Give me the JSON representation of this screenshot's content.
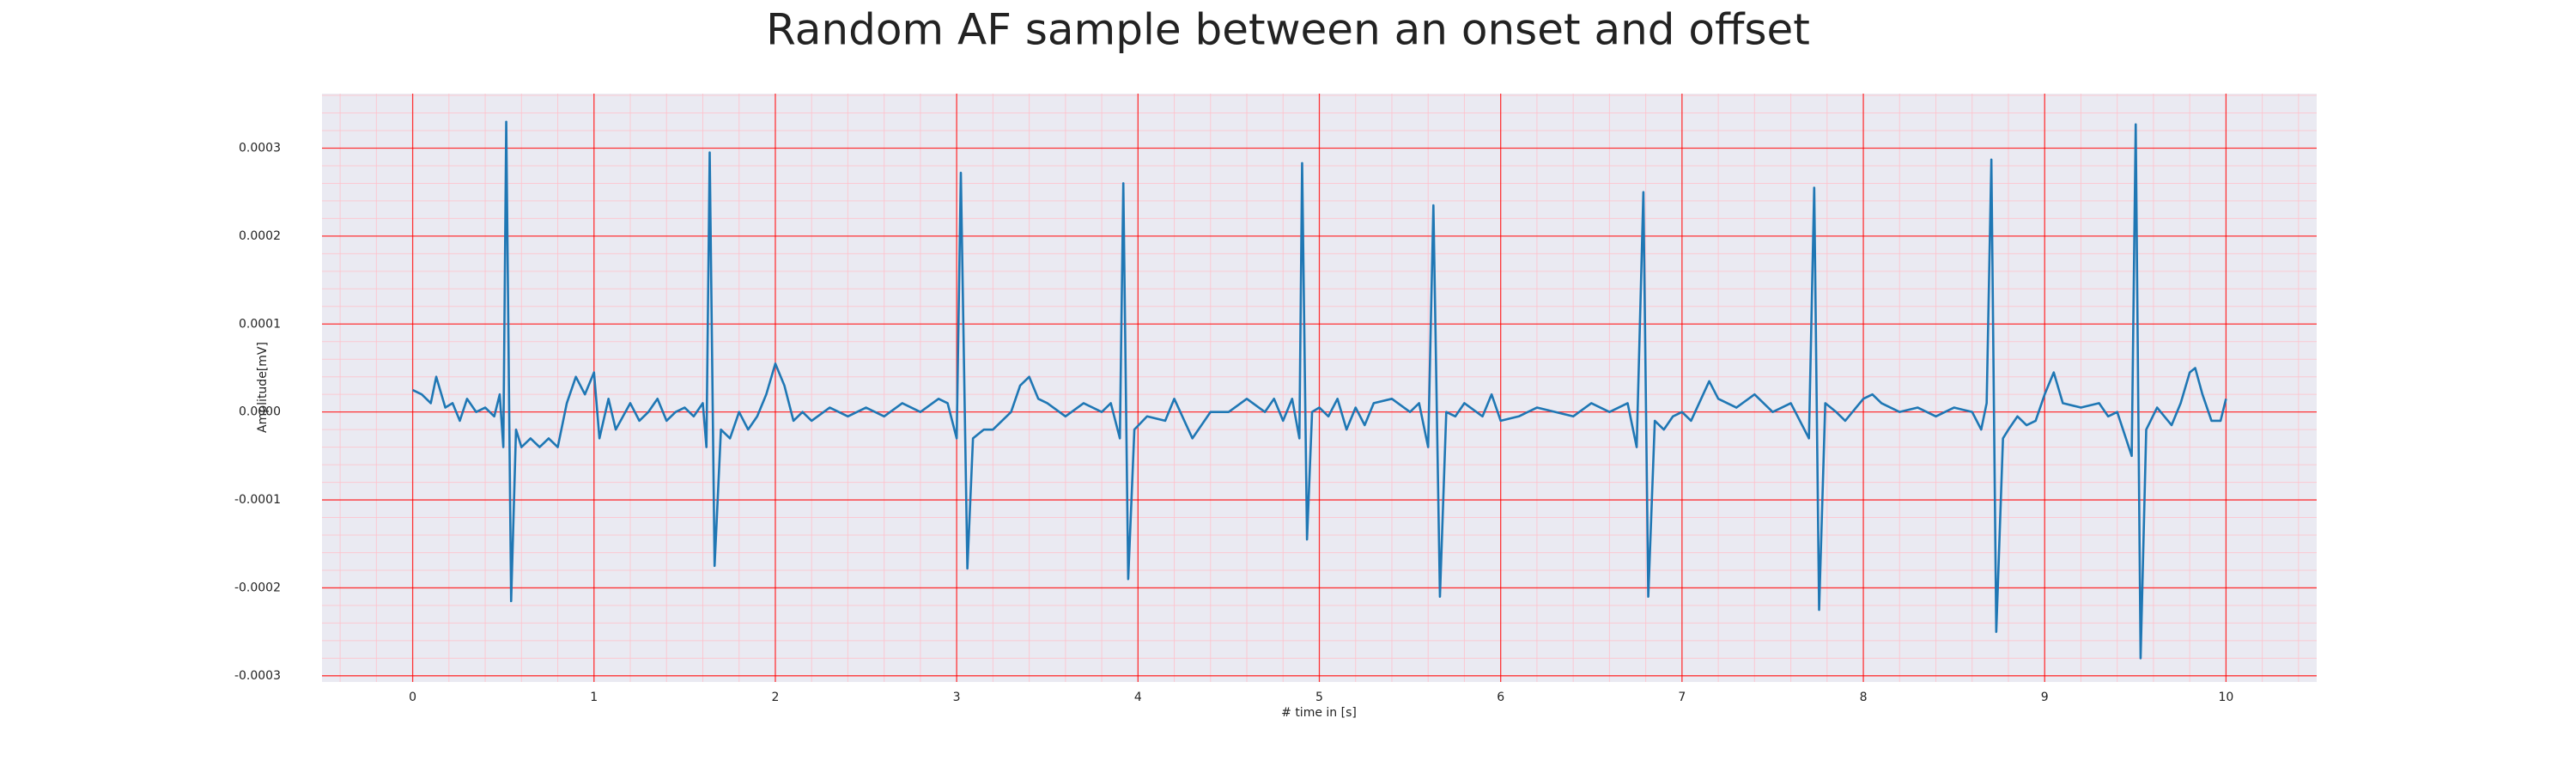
{
  "chart_data": {
    "type": "line",
    "title": "Random AF sample between an onset and offset",
    "xlabel": "# time in [s]",
    "ylabel": "Amplitude[mV]",
    "color": "#1f77b4",
    "grid": true,
    "minor_grid": true,
    "xlim": [
      -0.5,
      10.5
    ],
    "ylim": [
      -0.000307,
      0.000362
    ],
    "xticks": [
      0,
      1,
      2,
      3,
      4,
      5,
      6,
      7,
      8,
      9,
      10
    ],
    "yticks": [
      -0.0003,
      -0.0002,
      -0.0001,
      {
        "value": 0,
        "label": "0.0000"
      },
      0.0001,
      0.0002,
      0.0003
    ],
    "x": [
      0,
      0.05,
      0.1,
      0.13,
      0.18,
      0.22,
      0.26,
      0.3,
      0.35,
      0.4,
      0.45,
      0.48,
      0.5,
      0.516,
      0.543,
      0.57,
      0.6,
      0.65,
      0.7,
      0.75,
      0.8,
      0.85,
      0.9,
      0.95,
      1.0,
      1.03,
      1.08,
      1.12,
      1.2,
      1.25,
      1.3,
      1.35,
      1.4,
      1.45,
      1.5,
      1.55,
      1.6,
      1.62,
      1.638,
      1.665,
      1.7,
      1.75,
      1.8,
      1.85,
      1.9,
      1.95,
      2.0,
      2.05,
      2.1,
      2.15,
      2.2,
      2.3,
      2.4,
      2.5,
      2.6,
      2.7,
      2.8,
      2.9,
      2.95,
      3.0,
      3.023,
      3.059,
      3.09,
      3.15,
      3.2,
      3.3,
      3.35,
      3.4,
      3.45,
      3.5,
      3.6,
      3.7,
      3.8,
      3.85,
      3.9,
      3.919,
      3.946,
      3.98,
      4.05,
      4.15,
      4.2,
      4.3,
      4.4,
      4.5,
      4.6,
      4.7,
      4.75,
      4.8,
      4.85,
      4.89,
      4.905,
      4.932,
      4.96,
      5.0,
      5.05,
      5.1,
      5.15,
      5.2,
      5.25,
      5.3,
      5.4,
      5.5,
      5.55,
      5.6,
      5.629,
      5.665,
      5.7,
      5.75,
      5.8,
      5.9,
      5.95,
      6.0,
      6.1,
      6.2,
      6.3,
      6.4,
      6.5,
      6.6,
      6.7,
      6.75,
      6.787,
      6.814,
      6.85,
      6.9,
      6.95,
      7.0,
      7.05,
      7.15,
      7.2,
      7.3,
      7.4,
      7.5,
      7.6,
      7.7,
      7.729,
      7.756,
      7.79,
      7.85,
      7.9,
      8.0,
      8.05,
      8.1,
      8.2,
      8.3,
      8.4,
      8.5,
      8.6,
      8.65,
      8.68,
      8.706,
      8.733,
      8.77,
      8.8,
      8.85,
      8.9,
      8.95,
      9.0,
      9.05,
      9.1,
      9.2,
      9.3,
      9.35,
      9.4,
      9.48,
      9.502,
      9.529,
      9.56,
      9.62,
      9.7,
      9.75,
      9.8,
      9.83,
      9.87,
      9.92,
      9.97,
      10.0
    ],
    "values": [
      2.5e-05,
      2e-05,
      1e-05,
      4e-05,
      5e-06,
      1e-05,
      -1e-05,
      1.5e-05,
      0.0,
      5e-06,
      -5e-06,
      2e-05,
      -4e-05,
      0.00033,
      -0.000215,
      -2e-05,
      -4e-05,
      -3e-05,
      -4e-05,
      -3e-05,
      -4e-05,
      1e-05,
      4e-05,
      2e-05,
      4.5e-05,
      -3e-05,
      1.5e-05,
      -2e-05,
      1e-05,
      -1e-05,
      0.0,
      1.5e-05,
      -1e-05,
      0.0,
      5e-06,
      -5e-06,
      1e-05,
      -4e-05,
      0.000295,
      -0.000175,
      -2e-05,
      -3e-05,
      0.0,
      -2e-05,
      -5e-06,
      2e-05,
      5.5e-05,
      3e-05,
      -1e-05,
      0.0,
      -1e-05,
      5e-06,
      -5e-06,
      5e-06,
      -5e-06,
      1e-05,
      0.0,
      1.5e-05,
      1e-05,
      -3e-05,
      0.000272,
      -0.000178,
      -3e-05,
      -2e-05,
      -2e-05,
      0.0,
      3e-05,
      4e-05,
      1.5e-05,
      1e-05,
      -5e-06,
      1e-05,
      0.0,
      1e-05,
      -3e-05,
      0.00026,
      -0.00019,
      -2e-05,
      -5e-06,
      -1e-05,
      1.5e-05,
      -3e-05,
      0.0,
      0.0,
      1.5e-05,
      0.0,
      1.5e-05,
      -1e-05,
      1.5e-05,
      -3e-05,
      0.000283,
      -0.000145,
      0.0,
      5e-06,
      -5e-06,
      1.5e-05,
      -2e-05,
      5e-06,
      -1.5e-05,
      1e-05,
      1.5e-05,
      0.0,
      1e-05,
      -4e-05,
      0.000235,
      -0.00021,
      0.0,
      -5e-06,
      1e-05,
      -5e-06,
      2e-05,
      -1e-05,
      -5e-06,
      5e-06,
      0.0,
      -5e-06,
      1e-05,
      0.0,
      1e-05,
      -4e-05,
      0.00025,
      -0.00021,
      -1e-05,
      -2e-05,
      -5e-06,
      0.0,
      -1e-05,
      3.5e-05,
      1.5e-05,
      5e-06,
      2e-05,
      0.0,
      1e-05,
      -3e-05,
      0.000255,
      -0.000225,
      1e-05,
      0.0,
      -1e-05,
      1.5e-05,
      2e-05,
      1e-05,
      0.0,
      5e-06,
      -5e-06,
      5e-06,
      0.0,
      -2e-05,
      1e-05,
      0.000287,
      -0.00025,
      -3e-05,
      -2e-05,
      -5e-06,
      -1.5e-05,
      -1e-05,
      2e-05,
      4.5e-05,
      1e-05,
      5e-06,
      1e-05,
      -5e-06,
      0.0,
      -5e-05,
      0.000327,
      -0.00028,
      -2e-05,
      5e-06,
      -1.5e-05,
      1e-05,
      4.5e-05,
      5e-05,
      2e-05,
      -1e-05,
      -1e-05,
      1.5e-05
    ]
  }
}
